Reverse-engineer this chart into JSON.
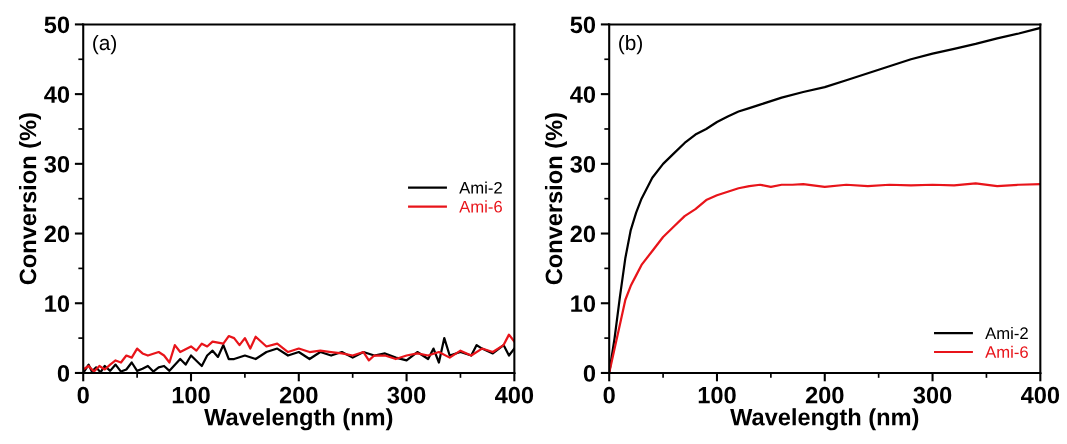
{
  "chart_data": [
    {
      "type": "line",
      "annotations": [
        "(a)"
      ],
      "xlabel": "Wavelength (nm)",
      "ylabel": "Conversion (%)",
      "xlim": [
        0,
        400
      ],
      "ylim": [
        0,
        50
      ],
      "xticks": [
        0,
        {
          "value": 50,
          "label": null
        },
        100,
        {
          "value": 150,
          "label": null
        },
        200,
        {
          "value": 250,
          "label": null
        },
        300,
        {
          "value": 350,
          "label": null
        },
        400
      ],
      "yticks": [
        0,
        {
          "value": 5,
          "label": null
        },
        10,
        {
          "value": 15,
          "label": null
        },
        20,
        {
          "value": 25,
          "label": null
        },
        30,
        {
          "value": 35,
          "label": null
        },
        40,
        {
          "value": 45,
          "label": null
        },
        50
      ],
      "legend": "right",
      "grid": false,
      "series": [
        {
          "name": "Ami-2",
          "color": "#000000",
          "x": [
            0,
            5,
            8,
            12,
            16,
            20,
            25,
            30,
            35,
            40,
            45,
            50,
            55,
            60,
            65,
            70,
            75,
            80,
            90,
            95,
            100,
            110,
            115,
            120,
            125,
            130,
            135,
            140,
            150,
            160,
            170,
            180,
            190,
            200,
            210,
            220,
            230,
            240,
            250,
            260,
            270,
            280,
            290,
            300,
            310,
            320,
            325,
            330,
            335,
            340,
            350,
            360,
            365,
            370,
            380,
            390,
            395,
            400
          ],
          "values": [
            0,
            1.2,
            0.2,
            0.8,
            0.1,
            1,
            0.3,
            1.2,
            0.2,
            0.5,
            1.5,
            0.3,
            0.6,
            1,
            0.2,
            0.8,
            1,
            0.3,
            2,
            1.2,
            2.5,
            1,
            2.5,
            3.2,
            2.3,
            4,
            2,
            2,
            2.5,
            2,
            3,
            3.5,
            2.5,
            3,
            2,
            3,
            2.5,
            3,
            2.2,
            3,
            2.5,
            2.8,
            2.2,
            1.8,
            3,
            2,
            3.5,
            1.5,
            5,
            2.5,
            3,
            2.5,
            4,
            3.5,
            2.8,
            4,
            2.5,
            3.5
          ]
        },
        {
          "name": "Ami-6",
          "color": "#e8141a",
          "x": [
            0,
            5,
            10,
            15,
            20,
            25,
            30,
            35,
            40,
            45,
            50,
            55,
            60,
            70,
            75,
            80,
            85,
            90,
            100,
            105,
            110,
            115,
            120,
            130,
            135,
            140,
            145,
            150,
            155,
            160,
            170,
            180,
            190,
            200,
            210,
            220,
            230,
            240,
            250,
            260,
            265,
            270,
            280,
            290,
            300,
            310,
            320,
            330,
            340,
            350,
            360,
            370,
            380,
            390,
            395,
            400
          ],
          "values": [
            0.5,
            1,
            0.2,
            1,
            0.5,
            1.2,
            1.8,
            1.5,
            2.5,
            2.2,
            3.5,
            2.8,
            2.5,
            3,
            2.5,
            1.5,
            4,
            3,
            3.8,
            3.2,
            4.2,
            3.8,
            4.5,
            4.2,
            5.3,
            5,
            4,
            5,
            3.5,
            5.2,
            3.8,
            4.2,
            3,
            3.5,
            3,
            3.2,
            3,
            2.8,
            2.5,
            3,
            1.8,
            2.5,
            2.5,
            2,
            2.5,
            2.8,
            2.5,
            3,
            2.2,
            3.2,
            2.5,
            3.5,
            3,
            4,
            5.5,
            4.5
          ]
        }
      ]
    },
    {
      "type": "line",
      "annotations": [
        "(b)"
      ],
      "xlabel": "Wavelength (nm)",
      "ylabel": "Conversion (%)",
      "xlim": [
        0,
        400
      ],
      "ylim": [
        0,
        50
      ],
      "xticks": [
        0,
        {
          "value": 50,
          "label": null
        },
        100,
        {
          "value": 150,
          "label": null
        },
        200,
        {
          "value": 250,
          "label": null
        },
        300,
        {
          "value": 350,
          "label": null
        },
        400
      ],
      "yticks": [
        0,
        {
          "value": 5,
          "label": null
        },
        10,
        {
          "value": 15,
          "label": null
        },
        20,
        {
          "value": 25,
          "label": null
        },
        30,
        {
          "value": 35,
          "label": null
        },
        40,
        {
          "value": 45,
          "label": null
        },
        50
      ],
      "legend": "bottom right",
      "grid": false,
      "series": [
        {
          "name": "Ami-2",
          "color": "#000000",
          "x": [
            0,
            5,
            10,
            15,
            20,
            25,
            30,
            40,
            50,
            60,
            70,
            80,
            90,
            100,
            110,
            120,
            130,
            140,
            150,
            160,
            180,
            200,
            220,
            240,
            260,
            280,
            300,
            320,
            340,
            360,
            380,
            400
          ],
          "values": [
            0,
            5,
            11,
            16.5,
            20.5,
            23,
            25,
            28,
            30,
            31.5,
            33,
            34.2,
            35,
            36,
            36.8,
            37.5,
            38,
            38.5,
            39,
            39.5,
            40.3,
            41,
            42,
            43,
            44,
            45,
            45.8,
            46.5,
            47.2,
            48,
            48.7,
            49.5
          ]
        },
        {
          "name": "Ami-6",
          "color": "#e8141a",
          "x": [
            0,
            5,
            10,
            15,
            20,
            25,
            30,
            40,
            50,
            60,
            70,
            80,
            90,
            100,
            110,
            120,
            130,
            140,
            150,
            160,
            170,
            180,
            200,
            220,
            240,
            260,
            280,
            300,
            320,
            340,
            360,
            380,
            400
          ],
          "values": [
            0,
            3.5,
            7,
            10.5,
            12.5,
            14,
            15.5,
            17.5,
            19.5,
            21,
            22.5,
            23.5,
            24.8,
            25.5,
            26,
            26.5,
            26.8,
            27,
            26.7,
            27,
            27,
            27.1,
            26.7,
            27,
            26.8,
            27,
            26.9,
            27,
            26.9,
            27.2,
            26.8,
            27,
            27.1
          ]
        }
      ]
    }
  ]
}
